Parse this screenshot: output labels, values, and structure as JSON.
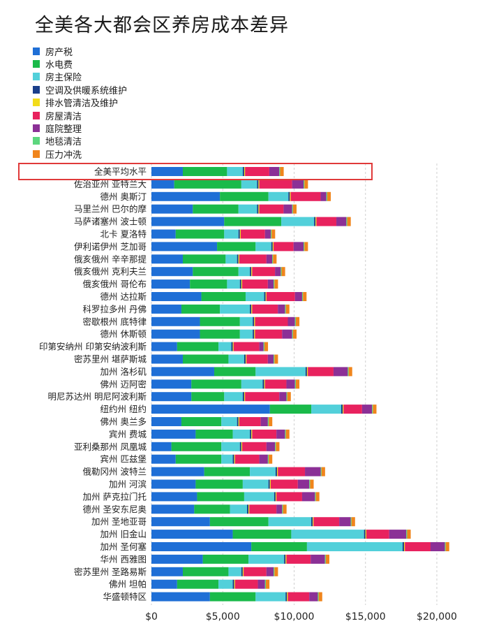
{
  "colors": {
    "房产税": "#1f6fd6",
    "水电费": "#1aba4a",
    "房主保险": "#52d0da",
    "空调及供暖系统维护": "#1b3f8a",
    "排水管清洁及维护": "#f2dc1a",
    "房屋清洁": "#e8225e",
    "庭院整理": "#8b3096",
    "地毯清洁": "#5cd67e",
    "压力冲洗": "#f0851c"
  },
  "highlight": {
    "category": "全美平均水平",
    "color": "#e03a3a"
  },
  "chart_data": {
    "type": "bar",
    "orientation": "horizontal",
    "stacked": true,
    "title": "全美各大都会区养房成本差异",
    "xlim": [
      0,
      21000
    ],
    "x_ticks": [
      "$0",
      "$5,000",
      "$10,000",
      "$15,000",
      "$20,000"
    ],
    "x_tick_values": [
      0,
      5000,
      10000,
      15000,
      20000
    ],
    "grid": "vertical-dashed",
    "legend_position": "top-left",
    "categories": [
      "全美平均水平",
      "佐治亚州 亚特兰大",
      "德州 奥斯汀",
      "马里兰州 巴尔的摩",
      "马萨诸塞州 波士顿",
      "北卡 夏洛特",
      "伊利诺伊州 芝加哥",
      "俄亥俄州 辛辛那提",
      "俄亥俄州 克利夫兰",
      "俄亥俄州 哥伦布",
      "德州 达拉斯",
      "科罗拉多州 丹佛",
      "密歇根州 底特律",
      "德州 休斯顿",
      "印第安纳州 印第安纳波利斯",
      "密苏里州 堪萨斯城",
      "加州 洛杉矶",
      "佛州 迈阿密",
      "明尼苏达州 明尼阿波利斯",
      "纽约州 纽约",
      "佛州 奥兰多",
      "宾州 费城",
      "亚利桑那州 凤凰城",
      "宾州 匹兹堡",
      "俄勒冈州 波特兰",
      "加州 河滨",
      "加州 萨克拉门托",
      "德州 圣安东尼奥",
      "加州 圣地亚哥",
      "加州 旧金山",
      "加州 圣何塞",
      "华州 西雅图",
      "密苏里州 圣路易斯",
      "佛州 坦帕",
      "华盛顿特区"
    ],
    "series": [
      {
        "name": "房产税",
        "values": [
          2200,
          1600,
          4800,
          2900,
          5100,
          1700,
          4600,
          2200,
          2900,
          2700,
          3500,
          2100,
          3400,
          3400,
          1800,
          2200,
          4400,
          2800,
          2800,
          8300,
          2100,
          3100,
          1400,
          1700,
          3700,
          3100,
          3200,
          3000,
          4100,
          5700,
          7000,
          3600,
          2200,
          1800,
          4100
        ]
      },
      {
        "name": "水电费",
        "values": [
          3100,
          4700,
          3400,
          3200,
          4000,
          3400,
          2700,
          3000,
          3200,
          2600,
          3100,
          2700,
          2800,
          2800,
          2900,
          3200,
          2900,
          3500,
          2300,
          2900,
          2800,
          2600,
          3500,
          3200,
          3200,
          3300,
          3300,
          2500,
          4100,
          4100,
          3900,
          3200,
          3200,
          2900,
          3200
        ]
      },
      {
        "name": "房主保险",
        "values": [
          1100,
          1100,
          1400,
          1300,
          2300,
          1000,
          1100,
          800,
          800,
          900,
          1300,
          2100,
          900,
          900,
          900,
          1100,
          3500,
          1500,
          1300,
          2100,
          1100,
          1200,
          1300,
          800,
          1800,
          1800,
          2100,
          1200,
          3000,
          5100,
          6700,
          2500,
          900,
          1000,
          2100
        ]
      },
      {
        "name": "空调及供暖系统维护",
        "values": [
          100,
          100,
          100,
          100,
          100,
          100,
          100,
          100,
          100,
          100,
          100,
          100,
          100,
          100,
          100,
          100,
          100,
          100,
          100,
          100,
          100,
          100,
          100,
          100,
          100,
          100,
          100,
          100,
          100,
          100,
          100,
          100,
          100,
          100,
          100
        ]
      },
      {
        "name": "排水管清洁及维护",
        "values": [
          60,
          60,
          60,
          60,
          60,
          60,
          60,
          60,
          60,
          60,
          60,
          60,
          60,
          60,
          60,
          60,
          60,
          60,
          60,
          60,
          60,
          60,
          60,
          60,
          60,
          60,
          60,
          60,
          60,
          60,
          60,
          60,
          60,
          60,
          60
        ]
      },
      {
        "name": "房屋清洁",
        "values": [
          1700,
          2300,
          2100,
          1700,
          1400,
          1700,
          1400,
          1900,
          1600,
          1800,
          2000,
          1800,
          2300,
          1900,
          1800,
          1500,
          1800,
          1500,
          2400,
          1300,
          1500,
          1700,
          1700,
          1700,
          1900,
          1900,
          1800,
          1900,
          1800,
          1600,
          1800,
          1700,
          1600,
          1600,
          1500
        ]
      },
      {
        "name": "庭院整理",
        "values": [
          700,
          800,
          400,
          600,
          700,
          400,
          700,
          400,
          400,
          400,
          500,
          500,
          500,
          700,
          300,
          400,
          1000,
          600,
          500,
          700,
          500,
          600,
          600,
          600,
          1100,
          800,
          900,
          400,
          800,
          1200,
          1000,
          1000,
          500,
          500,
          600
        ]
      },
      {
        "name": "地毯清洁",
        "values": [
          60,
          60,
          60,
          60,
          60,
          60,
          60,
          60,
          60,
          60,
          60,
          60,
          60,
          60,
          60,
          60,
          60,
          60,
          60,
          60,
          60,
          60,
          60,
          60,
          60,
          60,
          60,
          60,
          60,
          60,
          60,
          60,
          60,
          60,
          60
        ]
      },
      {
        "name": "压力冲洗",
        "values": [
          250,
          250,
          250,
          250,
          250,
          250,
          250,
          250,
          250,
          250,
          250,
          250,
          250,
          250,
          250,
          250,
          250,
          250,
          250,
          250,
          250,
          250,
          250,
          250,
          250,
          250,
          250,
          250,
          250,
          250,
          250,
          250,
          250,
          250,
          250
        ]
      }
    ]
  }
}
